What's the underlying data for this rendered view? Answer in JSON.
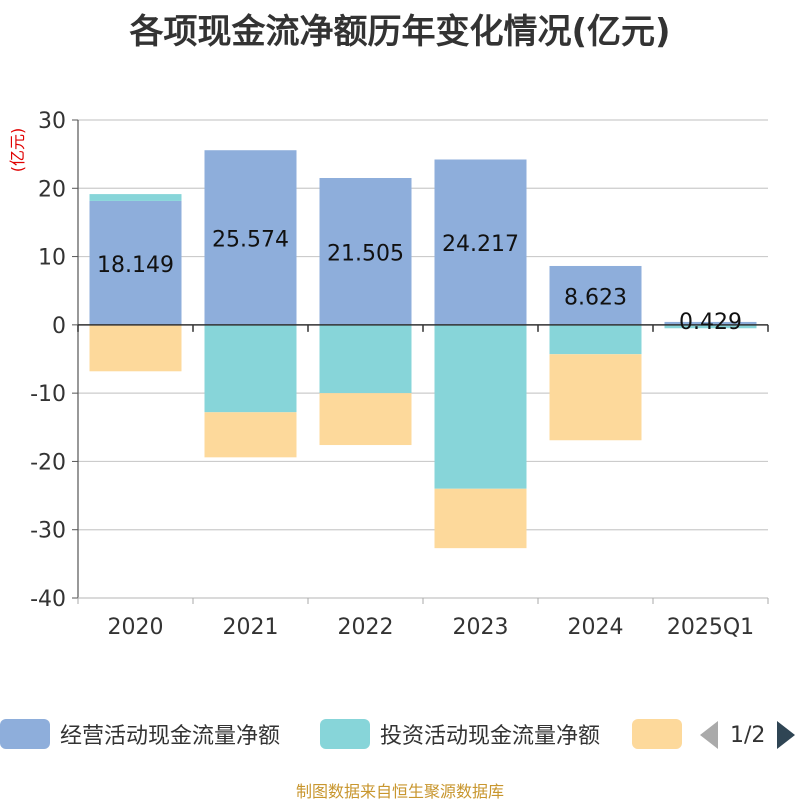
{
  "title": "各项现金流净额历年变化情况(亿元)",
  "unit_label": "(亿元)",
  "legend": {
    "items": [
      {
        "label": "经营活动现金流量净额",
        "color": "#8eaedb"
      },
      {
        "label": "投资活动现金流量净额",
        "color": "#87d5d9"
      },
      {
        "label": "",
        "color": "#fdd99b"
      }
    ],
    "page_indicator": "1/2"
  },
  "source": "制图数据来自恒生聚源数据库",
  "chart_data": {
    "type": "bar",
    "stacked": true,
    "categories": [
      "2020",
      "2021",
      "2022",
      "2023",
      "2024",
      "2025Q1"
    ],
    "series": [
      {
        "name": "经营活动现金流量净额",
        "color": "#8eaedb",
        "values": [
          18.149,
          25.574,
          21.505,
          24.217,
          8.623,
          0.429
        ],
        "labels": [
          "18.149",
          "25.574",
          "21.505",
          "24.217",
          "8.623",
          "0.429"
        ]
      },
      {
        "name": "投资活动现金流量净额",
        "color": "#87d5d9",
        "values": [
          1.0,
          -12.8,
          -10.0,
          -24.0,
          -4.3,
          -0.5
        ]
      },
      {
        "color": "#fdd99b",
        "values": [
          -6.8,
          -6.6,
          -7.6,
          -8.7,
          -12.6,
          0
        ]
      }
    ],
    "ylim": [
      -40,
      30
    ],
    "yticks": [
      30,
      20,
      10,
      0,
      -10,
      -20,
      -30,
      -40
    ],
    "grid": true,
    "legend_position": "bottom"
  }
}
